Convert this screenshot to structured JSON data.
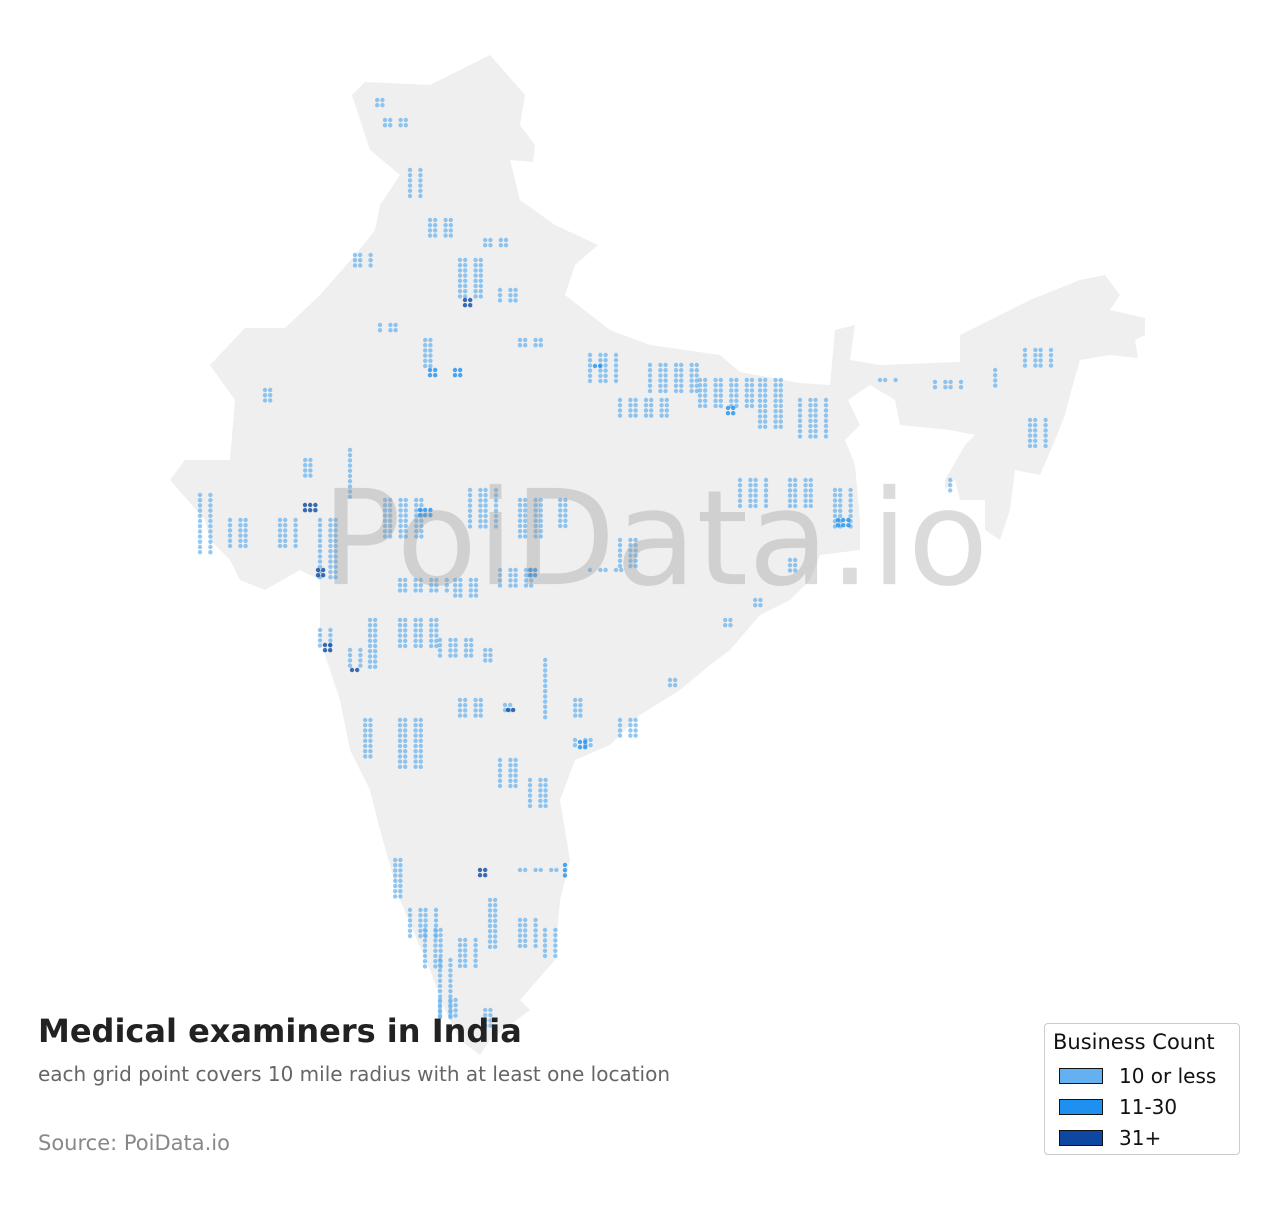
{
  "title": "Medical examiners in India",
  "subtitle": "each grid point covers 10 mile radius with at least one location",
  "source": "Source: PoiData.io",
  "watermark": "PoiData.io",
  "legend": {
    "title": "Business Count",
    "items": [
      {
        "label": "10 or less",
        "color": "#64b0f0"
      },
      {
        "label": "11-30",
        "color": "#1e90f0"
      },
      {
        "label": "31+",
        "color": "#0d47a1"
      }
    ]
  }
}
